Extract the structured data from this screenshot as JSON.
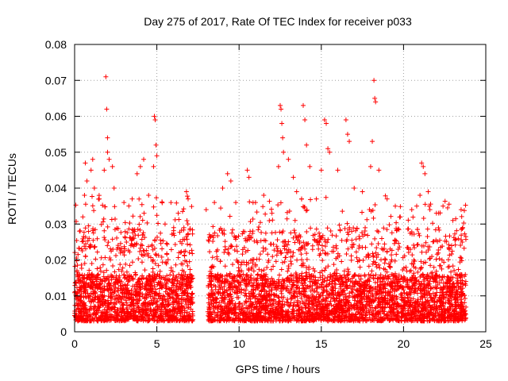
{
  "chart_data": {
    "type": "scatter",
    "title": "Day 275 of 2017, Rate Of TEC Index for receiver p033",
    "xlabel": "GPS time / hours",
    "ylabel": "ROTI / TECUs",
    "xlim": [
      0,
      25
    ],
    "ylim": [
      0,
      0.08
    ],
    "x_ticks": [
      0,
      5,
      10,
      15,
      20,
      25
    ],
    "y_ticks": [
      0,
      0.01,
      0.02,
      0.03,
      0.04,
      0.05,
      0.06,
      0.07,
      0.08
    ],
    "x_tick_labels": [
      "0",
      "5",
      "10",
      "15",
      "20",
      "25"
    ],
    "y_tick_labels": [
      "0",
      "0.01",
      "0.02",
      "0.03",
      "0.04",
      "0.05",
      "0.06",
      "0.07",
      "0.08"
    ],
    "grid": true,
    "marker": "plus",
    "marker_color": "#ff0000",
    "x_data_range": [
      0,
      23.8
    ],
    "data_gap_hours": [
      7.2,
      8.1
    ],
    "typical_range": [
      0.003,
      0.025
    ],
    "series": [
      {
        "points": [
          [
            0.3,
            0.028
          ],
          [
            0.5,
            0.032
          ],
          [
            0.6,
            0.038
          ],
          [
            0.65,
            0.047
          ],
          [
            0.75,
            0.042
          ],
          [
            1.0,
            0.045
          ],
          [
            1.1,
            0.048
          ],
          [
            1.2,
            0.04
          ],
          [
            1.5,
            0.037
          ],
          [
            1.8,
            0.045
          ],
          [
            1.9,
            0.071
          ],
          [
            1.95,
            0.062
          ],
          [
            2.0,
            0.054
          ],
          [
            2.0,
            0.05
          ],
          [
            2.1,
            0.048
          ],
          [
            2.3,
            0.046
          ],
          [
            2.4,
            0.04
          ],
          [
            3.0,
            0.036
          ],
          [
            3.5,
            0.037
          ],
          [
            3.8,
            0.044
          ],
          [
            4.0,
            0.046
          ],
          [
            4.2,
            0.048
          ],
          [
            4.5,
            0.038
          ],
          [
            4.8,
            0.046
          ],
          [
            4.85,
            0.06
          ],
          [
            4.9,
            0.059
          ],
          [
            4.95,
            0.052
          ],
          [
            5.0,
            0.049
          ],
          [
            5.5,
            0.03
          ],
          [
            6.3,
            0.033
          ],
          [
            6.8,
            0.039
          ],
          [
            6.9,
            0.037
          ],
          [
            8.0,
            0.034
          ],
          [
            8.5,
            0.036
          ],
          [
            9.0,
            0.04
          ],
          [
            9.3,
            0.044
          ],
          [
            9.5,
            0.042
          ],
          [
            9.8,
            0.036
          ],
          [
            10.5,
            0.045
          ],
          [
            10.6,
            0.043
          ],
          [
            11.0,
            0.036
          ],
          [
            11.5,
            0.038
          ],
          [
            12.0,
            0.033
          ],
          [
            12.4,
            0.046
          ],
          [
            12.5,
            0.063
          ],
          [
            12.55,
            0.062
          ],
          [
            12.6,
            0.058
          ],
          [
            12.65,
            0.054
          ],
          [
            12.7,
            0.05
          ],
          [
            13.0,
            0.048
          ],
          [
            13.3,
            0.043
          ],
          [
            13.5,
            0.039
          ],
          [
            13.8,
            0.037
          ],
          [
            13.9,
            0.063
          ],
          [
            14.0,
            0.059
          ],
          [
            14.1,
            0.052
          ],
          [
            14.3,
            0.046
          ],
          [
            14.7,
            0.037
          ],
          [
            15.0,
            0.045
          ],
          [
            15.2,
            0.059
          ],
          [
            15.3,
            0.058
          ],
          [
            15.4,
            0.051
          ],
          [
            15.5,
            0.05
          ],
          [
            16.0,
            0.045
          ],
          [
            16.5,
            0.059
          ],
          [
            16.6,
            0.055
          ],
          [
            16.7,
            0.053
          ],
          [
            17.0,
            0.04
          ],
          [
            17.5,
            0.039
          ],
          [
            18.0,
            0.046
          ],
          [
            18.1,
            0.053
          ],
          [
            18.2,
            0.07
          ],
          [
            18.25,
            0.065
          ],
          [
            18.3,
            0.064
          ],
          [
            18.5,
            0.045
          ],
          [
            19.0,
            0.037
          ],
          [
            19.5,
            0.035
          ],
          [
            19.8,
            0.032
          ],
          [
            20.5,
            0.034
          ],
          [
            20.8,
            0.035
          ],
          [
            21.0,
            0.038
          ],
          [
            21.1,
            0.047
          ],
          [
            21.2,
            0.046
          ],
          [
            21.3,
            0.044
          ],
          [
            21.5,
            0.039
          ],
          [
            22.0,
            0.033
          ],
          [
            22.4,
            0.035
          ],
          [
            23.0,
            0.031
          ],
          [
            23.5,
            0.034
          ],
          [
            23.6,
            0.029
          ]
        ]
      }
    ]
  }
}
